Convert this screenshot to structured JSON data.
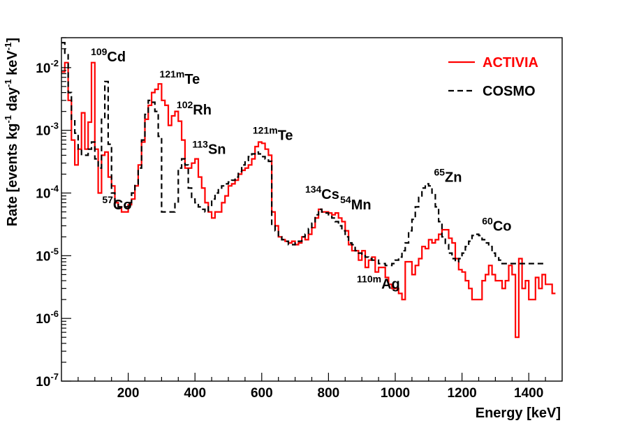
{
  "chart_data": {
    "type": "line",
    "xlabel": "Energy [keV]",
    "ylabel_parts": [
      "Rate [events kg",
      "-1",
      " day",
      "-1",
      " keV",
      "-1",
      "]"
    ],
    "xlim": [
      0,
      1500
    ],
    "ylim": [
      1e-07,
      0.03
    ],
    "yscale": "log",
    "x_ticks": [
      {
        "v": 200,
        "label": "200"
      },
      {
        "v": 400,
        "label": "400"
      },
      {
        "v": 600,
        "label": "600"
      },
      {
        "v": 800,
        "label": "800"
      },
      {
        "v": 1000,
        "label": "1000"
      },
      {
        "v": 1200,
        "label": "1200"
      },
      {
        "v": 1400,
        "label": "1400"
      }
    ],
    "y_ticks": [
      {
        "v": 1e-07,
        "base": "10",
        "exp": "-7"
      },
      {
        "v": 1e-06,
        "base": "10",
        "exp": "-6"
      },
      {
        "v": 1e-05,
        "base": "10",
        "exp": "-5"
      },
      {
        "v": 0.0001,
        "base": "10",
        "exp": "-4"
      },
      {
        "v": 0.001,
        "base": "10",
        "exp": "-3"
      },
      {
        "v": 0.01,
        "base": "10",
        "exp": "-2"
      }
    ],
    "bin_width": 10,
    "legend": {
      "position": "top-right",
      "entries": [
        {
          "label": "ACTIVIA",
          "color": "#ff0000",
          "dash": "solid"
        },
        {
          "label": "COSMO",
          "color": "#000000",
          "dash": "dashed"
        }
      ]
    },
    "annotations": [
      {
        "id": "cd109",
        "mass": "109",
        "element": "Cd",
        "energy": 88,
        "rate": 0.0125
      },
      {
        "id": "te121m-a",
        "mass": "121m",
        "element": "Te",
        "energy": 294,
        "rate": 0.0055
      },
      {
        "id": "rh102",
        "mass": "102",
        "element": "Rh",
        "energy": 345,
        "rate": 0.0018
      },
      {
        "id": "sn113",
        "mass": "113",
        "element": "Sn",
        "energy": 392,
        "rate": 0.00042
      },
      {
        "id": "te121m-b",
        "mass": "121m",
        "element": "Te",
        "energy": 573,
        "rate": 0.0007
      },
      {
        "id": "co57",
        "mass": "57",
        "element": "Co",
        "energy": 122,
        "rate": 5.5e-05
      },
      {
        "id": "cs134",
        "mass": "134",
        "element": "Cs",
        "energy": 730,
        "rate": 8e-05
      },
      {
        "id": "mn54",
        "mass": "54",
        "element": "Mn",
        "energy": 835,
        "rate": 5.5e-05
      },
      {
        "id": "ag110m",
        "mass": "110m",
        "element": "Ag",
        "energy": 885,
        "rate": 3e-06
      },
      {
        "id": "zn65",
        "mass": "65",
        "element": "Zn",
        "energy": 1116,
        "rate": 0.00015
      },
      {
        "id": "co60",
        "mass": "60",
        "element": "Co",
        "energy": 1260,
        "rate": 2.5e-05
      }
    ],
    "series": [
      {
        "name": "ACTIVIA",
        "color": "#ff0000",
        "dash": "solid",
        "x_start": 0,
        "values": [
          0.0085,
          0.012,
          0.003,
          0.0007,
          0.00028,
          0.0005,
          0.0019,
          0.0005,
          0.00135,
          0.012,
          0.0005,
          0.0001,
          0.0004,
          0.00045,
          0.00018,
          0.00013,
          7e-05,
          6e-05,
          5e-05,
          5e-05,
          6.5e-05,
          8e-05,
          0.00013,
          0.00028,
          0.00065,
          0.0015,
          0.0025,
          0.004,
          0.0045,
          0.0055,
          0.003,
          0.0025,
          0.0012,
          0.0017,
          0.002,
          0.0014,
          0.0007,
          0.00025,
          0.00025,
          0.0003,
          0.00035,
          0.00018,
          0.00012,
          7e-05,
          5e-05,
          4e-05,
          5e-05,
          5e-05,
          7e-05,
          9e-05,
          0.00013,
          0.00014,
          0.00016,
          0.0002,
          0.00023,
          0.00025,
          0.00028,
          0.00035,
          0.00055,
          0.00065,
          0.00062,
          0.0005,
          0.0004,
          5e-05,
          3e-05,
          2e-05,
          1.8e-05,
          1.7e-05,
          1.6e-05,
          1.7e-05,
          1.5e-05,
          1.6e-05,
          2e-05,
          1.8e-05,
          2.2e-05,
          2.8e-05,
          4e-05,
          5.5e-05,
          5e-05,
          5e-05,
          4.8e-05,
          4.5e-05,
          4.8e-05,
          4e-05,
          3.5e-05,
          2.5e-05,
          1.5e-05,
          1.2e-05,
          1.2e-05,
          8.5e-06,
          1.2e-05,
          6.5e-06,
          8.5e-06,
          9.5e-06,
          5.5e-06,
          6.5e-06,
          6.5e-06,
          4.5e-06,
          3.5e-06,
          3e-06,
          3e-06,
          2.5e-06,
          2e-06,
          8e-06,
          8e-06,
          5e-06,
          7e-06,
          9e-06,
          1.4e-05,
          1.3e-05,
          1.8e-05,
          1.6e-05,
          1.8e-05,
          2.2e-05,
          2.6e-05,
          2.6e-05,
          1.9e-05,
          1.6e-05,
          9e-06,
          6e-06,
          5.5e-06,
          4e-06,
          3e-06,
          2e-06,
          2e-06,
          2e-06,
          4e-06,
          5e-06,
          7e-06,
          5e-06,
          4e-06,
          4e-06,
          3e-06,
          4e-06,
          7e-06,
          5e-06,
          5e-07,
          9e-06,
          3e-06,
          4e-06,
          2e-06,
          2e-06,
          4.5e-06,
          3e-06,
          5e-06,
          3.5e-06,
          3.5e-06,
          2.5e-06
        ]
      },
      {
        "name": "COSMO",
        "color": "#000000",
        "dash": "dashed",
        "x_start": 0,
        "values": [
          0.025,
          0.016,
          0.004,
          0.0015,
          0.0009,
          0.0005,
          0.0004,
          0.0004,
          0.0005,
          0.00065,
          0.00035,
          0.00025,
          0.0015,
          0.006,
          0.0006,
          0.0001,
          7e-05,
          6e-05,
          6e-05,
          6e-05,
          7e-05,
          0.0001,
          0.00014,
          0.00025,
          0.0007,
          0.0018,
          0.003,
          0.0028,
          0.002,
          0.0008,
          5e-05,
          5e-05,
          5e-05,
          5e-05,
          7e-05,
          0.00025,
          0.00035,
          0.00028,
          0.00012,
          8e-05,
          7e-05,
          6e-05,
          5.5e-05,
          5e-05,
          6e-05,
          8e-05,
          0.0001,
          0.00012,
          0.00013,
          0.00014,
          0.00015,
          0.00016,
          0.00018,
          0.00022,
          0.00028,
          0.00033,
          0.00038,
          0.00042,
          0.00045,
          0.00042,
          0.00038,
          0.00035,
          0.00032,
          3e-05,
          2.5e-05,
          2e-05,
          1.8e-05,
          1.7e-05,
          1.5e-05,
          1.5e-05,
          1.6e-05,
          1.7e-05,
          2e-05,
          2.2e-05,
          2.7e-05,
          3.3e-05,
          4.5e-05,
          5.5e-05,
          5e-05,
          4.8e-05,
          4.5e-05,
          4e-05,
          3.5e-05,
          3e-05,
          2.5e-05,
          2e-05,
          1.6e-05,
          1.5e-05,
          1.2e-05,
          1.1e-05,
          1e-05,
          9.5e-06,
          9e-06,
          8.5e-06,
          8.5e-06,
          7.5e-06,
          7.5e-06,
          7e-06,
          7e-06,
          7.5e-06,
          8.5e-06,
          9.5e-06,
          1.2e-05,
          1.6e-05,
          2.5e-05,
          3.8e-05,
          6e-05,
          8.5e-05,
          0.00012,
          0.00014,
          0.00013,
          0.0001,
          6e-05,
          3.5e-05,
          2e-05,
          1.5e-05,
          1.1e-05,
          9e-06,
          8e-06,
          9e-06,
          1.1e-05,
          1.4e-05,
          1.7e-05,
          2.1e-05,
          2.2e-05,
          2.1e-05,
          1.8e-05,
          1.6e-05,
          1.4e-05,
          1.1e-05,
          9.5e-06,
          8.5e-06,
          7.5e-06,
          7.5e-06,
          7.5e-06,
          7.5e-06,
          7.5e-06,
          7.5e-06,
          7.5e-06,
          7.5e-06,
          7.5e-06,
          7.5e-06,
          7.5e-06,
          7.5e-06,
          7.5e-06
        ]
      }
    ]
  }
}
